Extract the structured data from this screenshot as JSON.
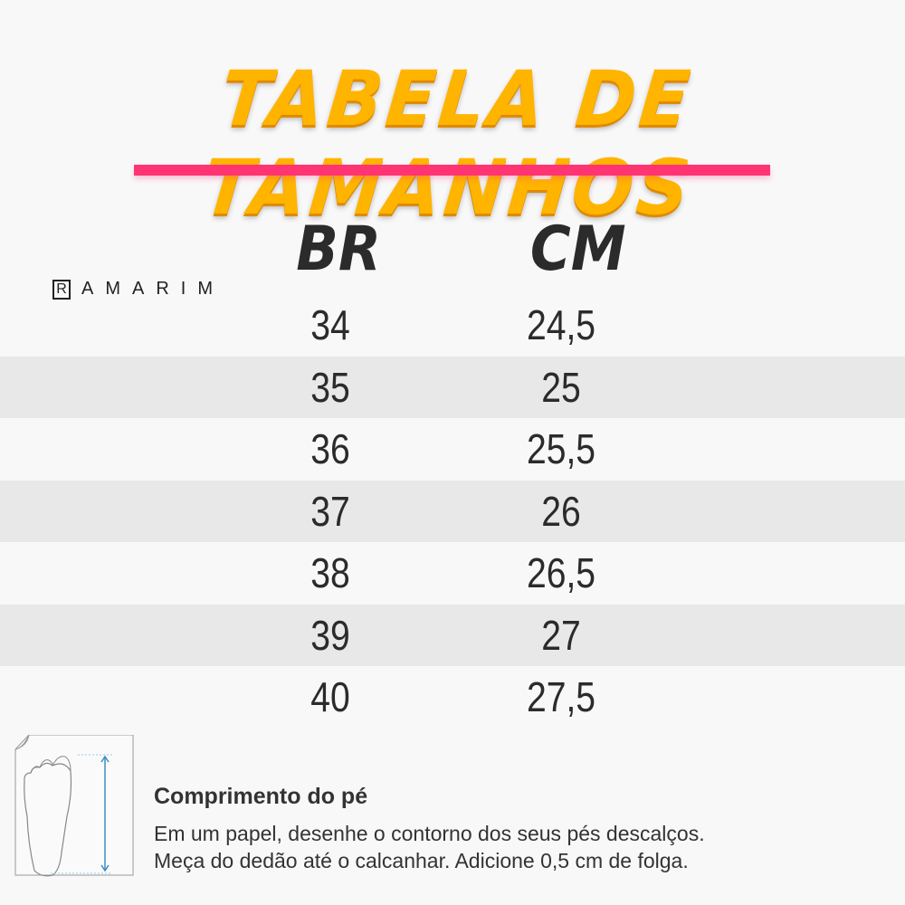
{
  "title": "TABELA DE TAMANHOS",
  "brand": {
    "initial": "R",
    "rest": "AMARIM"
  },
  "colors": {
    "title": "#ffb400",
    "accent_bar": "#ff3473",
    "band": "#e8e8e8"
  },
  "table": {
    "headers": [
      "BR",
      "CM"
    ],
    "rows": [
      {
        "br": "34",
        "cm": "24,5"
      },
      {
        "br": "35",
        "cm": "25"
      },
      {
        "br": "36",
        "cm": "25,5"
      },
      {
        "br": "37",
        "cm": "26"
      },
      {
        "br": "38",
        "cm": "26,5"
      },
      {
        "br": "39",
        "cm": "27"
      },
      {
        "br": "40",
        "cm": "27,5"
      }
    ]
  },
  "footer": {
    "icon": "foot-measure-icon",
    "title": "Comprimento do pé",
    "line1": "Em um papel, desenhe o contorno dos seus pés descalços.",
    "line2": "Meça do dedão até o calcanhar. Adicione 0,5 cm de folga."
  }
}
